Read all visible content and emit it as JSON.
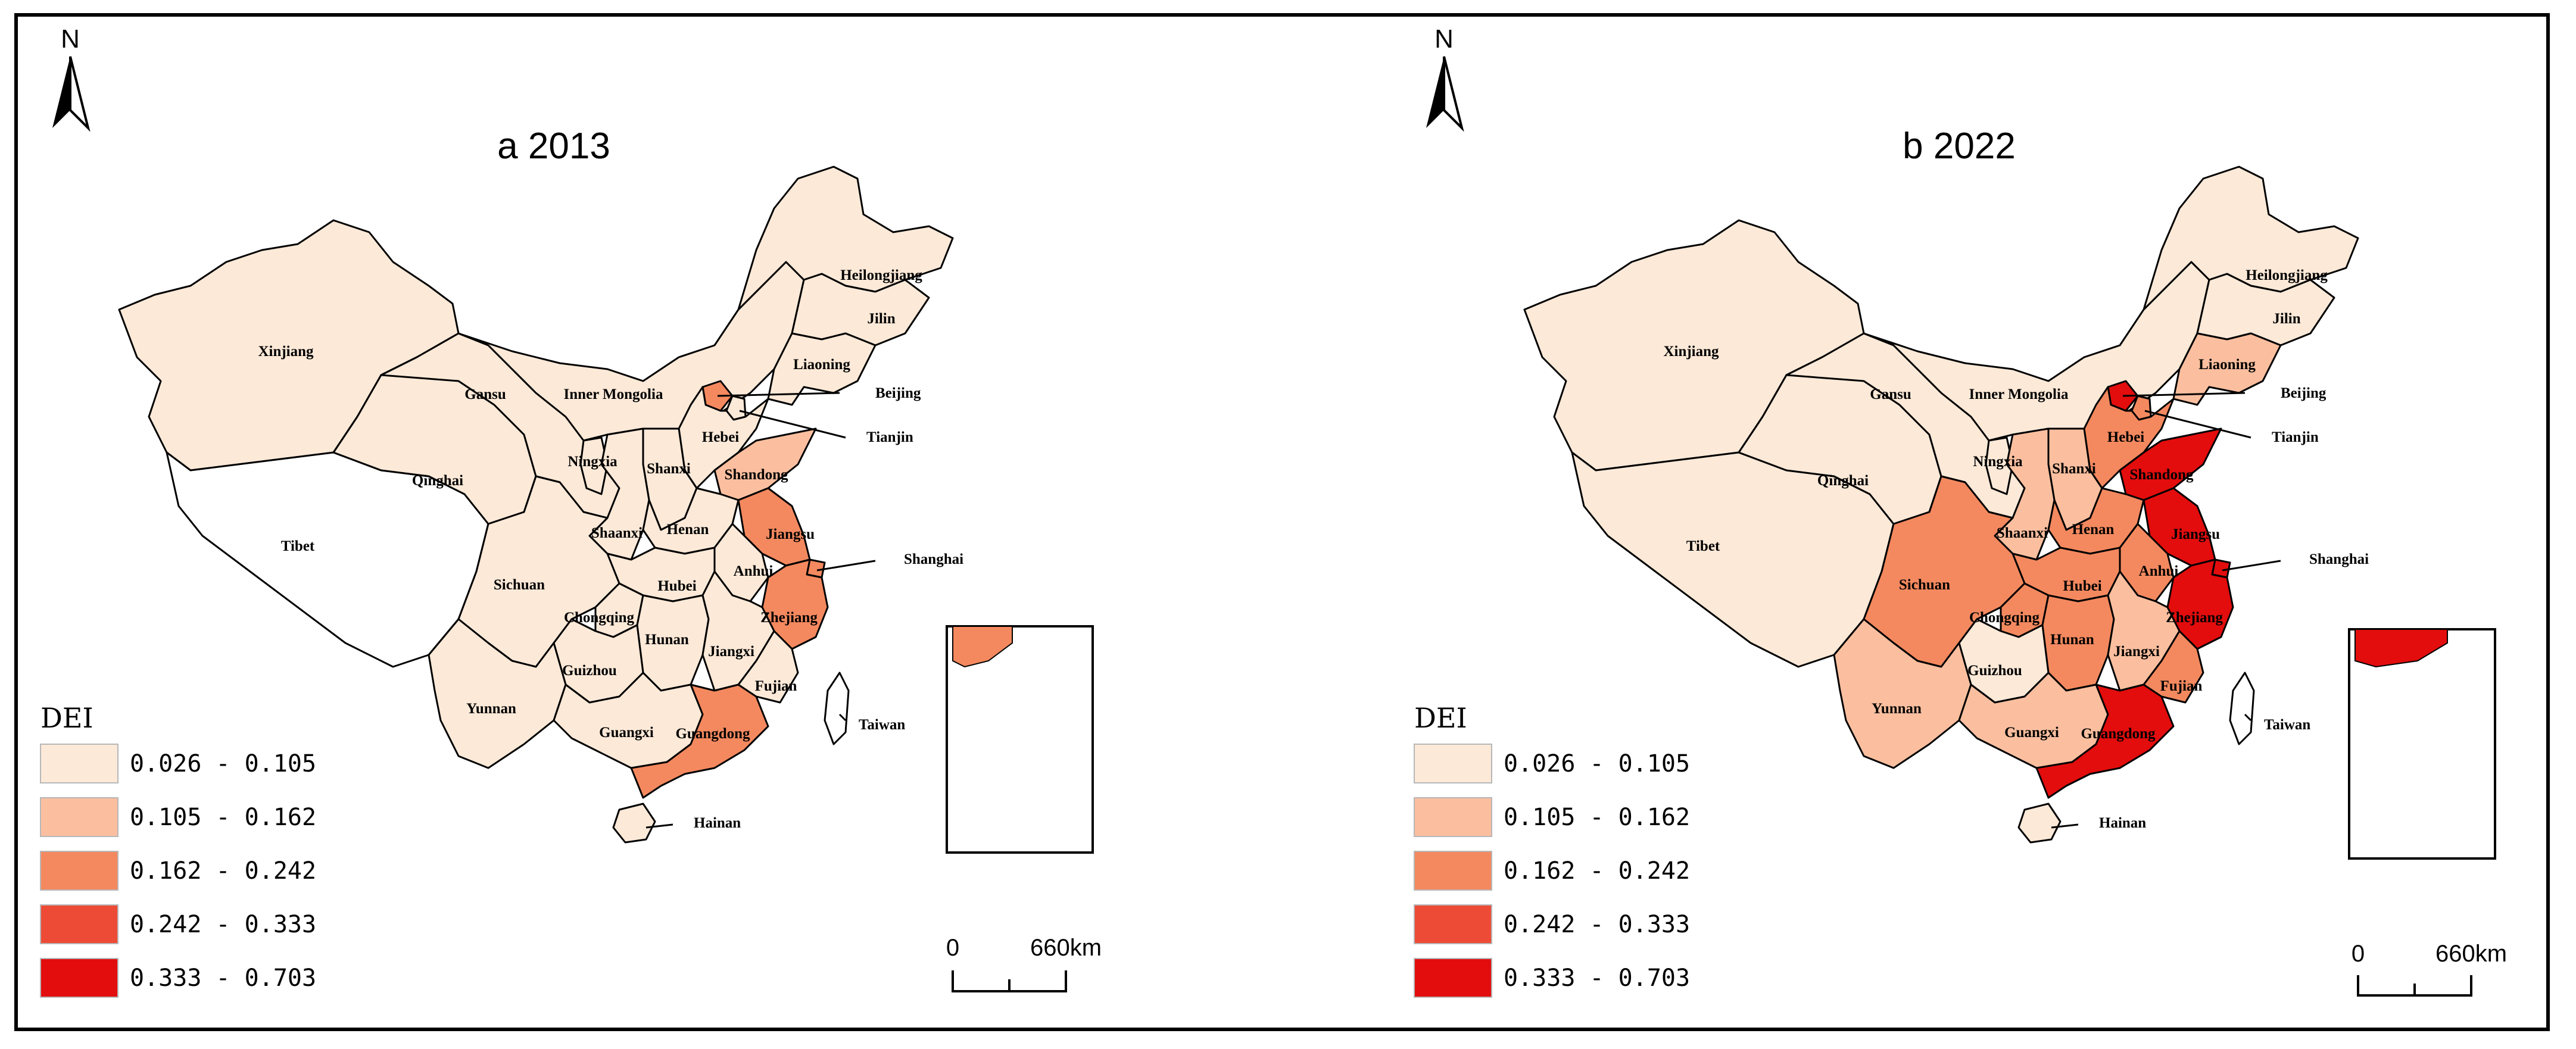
{
  "panels": [
    {
      "title": "a 2013",
      "provinces": {
        "xinjiang": {
          "label": "Xinjiang",
          "class": 0
        },
        "tibet": {
          "label": "Tibet",
          "class": null
        },
        "qinghai": {
          "label": "Qinghai",
          "class": 0
        },
        "gansu": {
          "label": "Gansu",
          "class": 0
        },
        "inner_mongolia": {
          "label": "Inner Mongolia",
          "class": 0
        },
        "heilongjiang": {
          "label": "Heilongjiang",
          "class": 0
        },
        "jilin": {
          "label": "Jilin",
          "class": 0
        },
        "liaoning": {
          "label": "Liaoning",
          "class": 0
        },
        "beijing": {
          "label": "Beijing",
          "class": 2
        },
        "tianjin": {
          "label": "Tianjin",
          "class": 0
        },
        "hebei": {
          "label": "Hebei",
          "class": 0
        },
        "shandong": {
          "label": "Shandong",
          "class": 1
        },
        "shanxi": {
          "label": "Shanxi",
          "class": 0
        },
        "ningxia": {
          "label": "Ningxia",
          "class": 0
        },
        "shaanxi": {
          "label": "Shaanxi",
          "class": 0
        },
        "henan": {
          "label": "Henan",
          "class": 0
        },
        "jiangsu": {
          "label": "Jiangsu",
          "class": 2
        },
        "shanghai": {
          "label": "Shanghai",
          "class": 2
        },
        "anhui": {
          "label": "Anhui",
          "class": 0
        },
        "hubei": {
          "label": "Hubei",
          "class": 0
        },
        "sichuan": {
          "label": "Sichuan",
          "class": 0
        },
        "chongqing": {
          "label": "Chongqing",
          "class": 0
        },
        "zhejiang": {
          "label": "Zhejiang",
          "class": 2
        },
        "hunan": {
          "label": "Hunan",
          "class": 0
        },
        "jiangxi": {
          "label": "Jiangxi",
          "class": 0
        },
        "guizhou": {
          "label": "Guizhou",
          "class": 0
        },
        "yunnan": {
          "label": "Yunnan",
          "class": 0
        },
        "guangxi": {
          "label": "Guangxi",
          "class": 0
        },
        "guangdong": {
          "label": "Guangdong",
          "class": 2
        },
        "fujian": {
          "label": "Fujian",
          "class": 0
        },
        "hainan": {
          "label": "Hainan",
          "class": 0
        },
        "taiwan": {
          "label": "Taiwan",
          "class": null
        }
      }
    },
    {
      "title": "b 2022",
      "provinces": {
        "xinjiang": {
          "label": "Xinjiang",
          "class": 0
        },
        "tibet": {
          "label": "Tibet",
          "class": 0
        },
        "qinghai": {
          "label": "Qinghai",
          "class": 0
        },
        "gansu": {
          "label": "Gansu",
          "class": 0
        },
        "inner_mongolia": {
          "label": "Inner Mongolia",
          "class": 0
        },
        "heilongjiang": {
          "label": "Heilongjiang",
          "class": 0
        },
        "jilin": {
          "label": "Jilin",
          "class": 0
        },
        "liaoning": {
          "label": "Liaoning",
          "class": 1
        },
        "beijing": {
          "label": "Beijing",
          "class": 4
        },
        "tianjin": {
          "label": "Tianjin",
          "class": 2
        },
        "hebei": {
          "label": "Hebei",
          "class": 2
        },
        "shandong": {
          "label": "Shandong",
          "class": 4
        },
        "shanxi": {
          "label": "Shanxi",
          "class": 1
        },
        "ningxia": {
          "label": "Ningxia",
          "class": 0
        },
        "shaanxi": {
          "label": "Shaanxi",
          "class": 1
        },
        "henan": {
          "label": "Henan",
          "class": 2
        },
        "jiangsu": {
          "label": "Jiangsu",
          "class": 4
        },
        "shanghai": {
          "label": "Shanghai",
          "class": 4
        },
        "anhui": {
          "label": "Anhui",
          "class": 2
        },
        "hubei": {
          "label": "Hubei",
          "class": 2
        },
        "sichuan": {
          "label": "Sichuan",
          "class": 2
        },
        "chongqing": {
          "label": "Chongqing",
          "class": 2
        },
        "zhejiang": {
          "label": "Zhejiang",
          "class": 4
        },
        "hunan": {
          "label": "Hunan",
          "class": 2
        },
        "jiangxi": {
          "label": "Jiangxi",
          "class": 1
        },
        "guizhou": {
          "label": "Guizhou",
          "class": 0
        },
        "yunnan": {
          "label": "Yunnan",
          "class": 1
        },
        "guangxi": {
          "label": "Guangxi",
          "class": 1
        },
        "guangdong": {
          "label": "Guangdong",
          "class": 4
        },
        "fujian": {
          "label": "Fujian",
          "class": 2
        },
        "hainan": {
          "label": "Hainan",
          "class": 0
        },
        "taiwan": {
          "label": "Taiwan",
          "class": null
        }
      }
    }
  ],
  "legend": {
    "title": "DEI",
    "classes": [
      {
        "range": "0.026 - 0.105",
        "color": "#fce9d8"
      },
      {
        "range": "0.105 - 0.162",
        "color": "#fbbf9f"
      },
      {
        "range": "0.162 - 0.242",
        "color": "#f4895f"
      },
      {
        "range": "0.242 - 0.333",
        "color": "#ee4b36"
      },
      {
        "range": "0.333 - 0.703",
        "color": "#e30d0d"
      }
    ]
  },
  "no_data_color": "#ffffff",
  "north_arrow": {
    "letter": "N"
  },
  "scale_bar": {
    "start": "0",
    "end": "660km"
  }
}
